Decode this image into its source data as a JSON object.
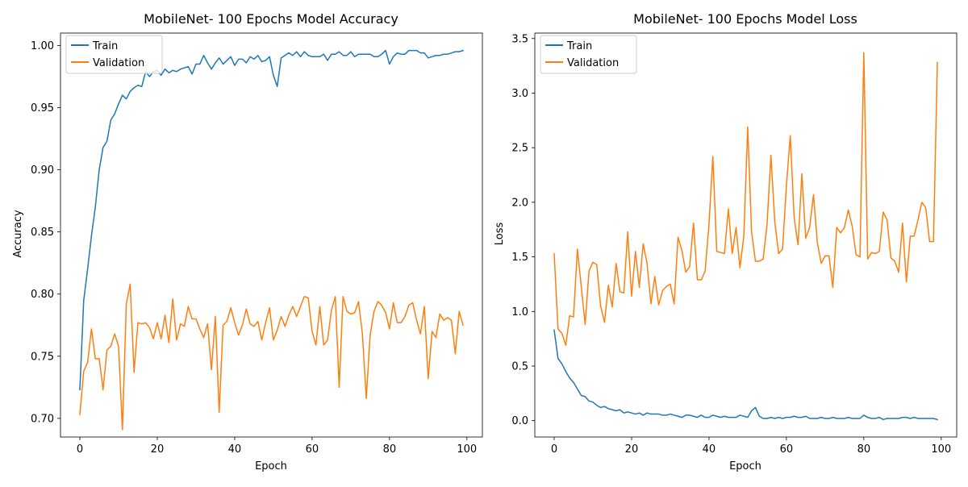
{
  "chart_data": [
    {
      "type": "line",
      "title": "MobileNet- 100 Epochs Model Accuracy",
      "xlabel": "Epoch",
      "ylabel": "Accuracy",
      "xlim": [
        -5,
        104
      ],
      "ylim": [
        0.685,
        1.01
      ],
      "xticks": [
        0,
        20,
        40,
        60,
        80,
        100
      ],
      "xtick_labels": [
        "0",
        "20",
        "40",
        "60",
        "80",
        "100"
      ],
      "yticks": [
        0.7,
        0.75,
        0.8,
        0.85,
        0.9,
        0.95,
        1.0
      ],
      "ytick_labels": [
        "0.70",
        "0.75",
        "0.80",
        "0.85",
        "0.90",
        "0.95",
        "1.00"
      ],
      "legend_position": "upper left",
      "grid": false,
      "series": [
        {
          "name": "Train",
          "color": "#1f77b4",
          "values": [
            0.723,
            0.795,
            0.82,
            0.847,
            0.87,
            0.9,
            0.918,
            0.923,
            0.94,
            0.945,
            0.953,
            0.96,
            0.957,
            0.963,
            0.966,
            0.968,
            0.967,
            0.979,
            0.975,
            0.979,
            0.98,
            0.976,
            0.981,
            0.978,
            0.98,
            0.979,
            0.981,
            0.982,
            0.983,
            0.977,
            0.985,
            0.985,
            0.992,
            0.986,
            0.981,
            0.986,
            0.99,
            0.985,
            0.988,
            0.991,
            0.984,
            0.989,
            0.989,
            0.986,
            0.991,
            0.989,
            0.992,
            0.987,
            0.988,
            0.991,
            0.976,
            0.967,
            0.99,
            0.992,
            0.994,
            0.992,
            0.995,
            0.991,
            0.995,
            0.992,
            0.991,
            0.991,
            0.991,
            0.993,
            0.988,
            0.993,
            0.993,
            0.995,
            0.992,
            0.992,
            0.995,
            0.991,
            0.993,
            0.993,
            0.993,
            0.993,
            0.991,
            0.991,
            0.993,
            0.996,
            0.985,
            0.991,
            0.994,
            0.993,
            0.993,
            0.996,
            0.996,
            0.996,
            0.994,
            0.994,
            0.99,
            0.991,
            0.992,
            0.992,
            0.993,
            0.993,
            0.994,
            0.995,
            0.995,
            0.996
          ]
        },
        {
          "name": "Validation",
          "color": "#ff7f0e",
          "values": [
            0.703,
            0.738,
            0.745,
            0.772,
            0.748,
            0.748,
            0.723,
            0.755,
            0.758,
            0.768,
            0.758,
            0.691,
            0.792,
            0.808,
            0.737,
            0.777,
            0.776,
            0.777,
            0.773,
            0.764,
            0.777,
            0.764,
            0.783,
            0.761,
            0.796,
            0.763,
            0.776,
            0.774,
            0.79,
            0.78,
            0.78,
            0.772,
            0.765,
            0.776,
            0.739,
            0.782,
            0.705,
            0.775,
            0.778,
            0.789,
            0.777,
            0.767,
            0.775,
            0.788,
            0.776,
            0.774,
            0.778,
            0.763,
            0.777,
            0.789,
            0.763,
            0.771,
            0.782,
            0.774,
            0.783,
            0.79,
            0.782,
            0.79,
            0.798,
            0.797,
            0.77,
            0.759,
            0.79,
            0.759,
            0.763,
            0.787,
            0.798,
            0.725,
            0.798,
            0.786,
            0.784,
            0.785,
            0.794,
            0.768,
            0.716,
            0.767,
            0.786,
            0.794,
            0.791,
            0.785,
            0.772,
            0.793,
            0.777,
            0.777,
            0.782,
            0.791,
            0.793,
            0.779,
            0.768,
            0.79,
            0.732,
            0.77,
            0.765,
            0.784,
            0.779,
            0.781,
            0.779,
            0.752,
            0.786,
            0.775
          ]
        }
      ]
    },
    {
      "type": "line",
      "title": "MobileNet- 100 Epochs Model Loss",
      "xlabel": "Epoch",
      "ylabel": "Loss",
      "xlim": [
        -5,
        104
      ],
      "ylim": [
        -0.15,
        3.55
      ],
      "xticks": [
        0,
        20,
        40,
        60,
        80,
        100
      ],
      "xtick_labels": [
        "0",
        "20",
        "40",
        "60",
        "80",
        "100"
      ],
      "yticks": [
        0.0,
        0.5,
        1.0,
        1.5,
        2.0,
        2.5,
        3.0,
        3.5
      ],
      "ytick_labels": [
        "0.0",
        "0.5",
        "1.0",
        "1.5",
        "2.0",
        "2.5",
        "3.0",
        "3.5"
      ],
      "legend_position": "upper left",
      "grid": false,
      "series": [
        {
          "name": "Train",
          "color": "#1f77b4",
          "values": [
            0.83,
            0.57,
            0.52,
            0.45,
            0.39,
            0.35,
            0.29,
            0.23,
            0.22,
            0.18,
            0.17,
            0.14,
            0.12,
            0.13,
            0.11,
            0.1,
            0.09,
            0.1,
            0.07,
            0.08,
            0.07,
            0.06,
            0.07,
            0.05,
            0.07,
            0.06,
            0.06,
            0.06,
            0.05,
            0.05,
            0.06,
            0.05,
            0.04,
            0.03,
            0.05,
            0.05,
            0.04,
            0.03,
            0.05,
            0.03,
            0.03,
            0.05,
            0.04,
            0.03,
            0.04,
            0.03,
            0.03,
            0.03,
            0.05,
            0.04,
            0.03,
            0.09,
            0.12,
            0.04,
            0.02,
            0.02,
            0.03,
            0.02,
            0.03,
            0.02,
            0.03,
            0.03,
            0.04,
            0.03,
            0.03,
            0.04,
            0.02,
            0.02,
            0.02,
            0.03,
            0.02,
            0.02,
            0.03,
            0.02,
            0.02,
            0.02,
            0.03,
            0.02,
            0.02,
            0.02,
            0.05,
            0.03,
            0.02,
            0.02,
            0.03,
            0.01,
            0.02,
            0.02,
            0.02,
            0.02,
            0.03,
            0.03,
            0.02,
            0.03,
            0.02,
            0.02,
            0.02,
            0.02,
            0.02,
            0.01
          ]
        },
        {
          "name": "Validation",
          "color": "#ff7f0e",
          "values": [
            1.53,
            0.84,
            0.8,
            0.69,
            0.96,
            0.95,
            1.57,
            1.23,
            0.88,
            1.37,
            1.45,
            1.43,
            1.05,
            0.9,
            1.24,
            1.04,
            1.44,
            1.18,
            1.17,
            1.73,
            1.14,
            1.55,
            1.22,
            1.62,
            1.44,
            1.07,
            1.32,
            1.06,
            1.19,
            1.23,
            1.25,
            1.07,
            1.68,
            1.56,
            1.36,
            1.41,
            1.81,
            1.29,
            1.29,
            1.37,
            1.8,
            2.42,
            1.55,
            1.54,
            1.53,
            1.94,
            1.53,
            1.77,
            1.4,
            1.69,
            2.69,
            1.73,
            1.46,
            1.46,
            1.48,
            1.8,
            2.43,
            1.82,
            1.53,
            1.57,
            2.15,
            2.61,
            1.86,
            1.61,
            2.26,
            1.67,
            1.77,
            2.07,
            1.63,
            1.44,
            1.51,
            1.51,
            1.22,
            1.77,
            1.72,
            1.77,
            1.93,
            1.78,
            1.52,
            1.5,
            3.37,
            1.48,
            1.54,
            1.53,
            1.55,
            1.91,
            1.84,
            1.49,
            1.46,
            1.36,
            1.81,
            1.27,
            1.69,
            1.69,
            1.84,
            2.0,
            1.95,
            1.64,
            1.64,
            3.28
          ]
        }
      ]
    }
  ]
}
